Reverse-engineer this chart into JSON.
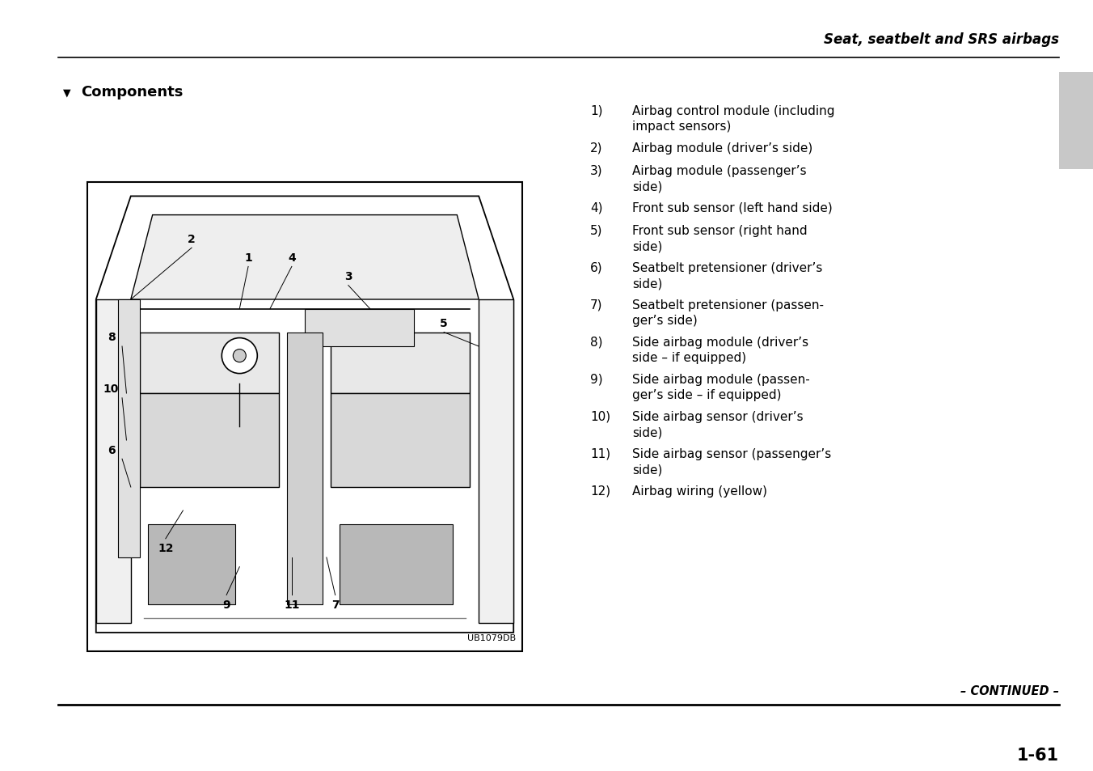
{
  "background_color": "#ffffff",
  "header_title": "Seat, seatbelt and SRS airbags",
  "section_heading": "Components",
  "diagram_label": "UB1079DB",
  "list_items": [
    {
      "num": "1)",
      "text": "Airbag control module (including\nimpact sensors)"
    },
    {
      "num": "2)",
      "text": "Airbag module (driver’s side)"
    },
    {
      "num": "3)",
      "text": "Airbag module (passenger’s\nside)"
    },
    {
      "num": "4)",
      "text": "Front sub sensor (left hand side)"
    },
    {
      "num": "5)",
      "text": "Front sub sensor (right hand\nside)"
    },
    {
      "num": "6)",
      "text": "Seatbelt pretensioner (driver’s\nside)"
    },
    {
      "num": "7)",
      "text": "Seatbelt pretensioner (passen-\nger’s side)"
    },
    {
      "num": "8)",
      "text": "Side airbag module (driver’s\nside – if equipped)"
    },
    {
      "num": "9)",
      "text": "Side airbag module (passen-\nger’s side – if equipped)"
    },
    {
      "num": "10)",
      "text": "Side airbag sensor (driver’s\nside)"
    },
    {
      "num": "11)",
      "text": "Side airbag sensor (passenger’s\nside)"
    },
    {
      "num": "12)",
      "text": "Airbag wiring (yellow)"
    }
  ],
  "footer_continued": "– CONTINUED –",
  "footer_page_num": "1-61",
  "gray_tab_color": "#c8c8c8"
}
